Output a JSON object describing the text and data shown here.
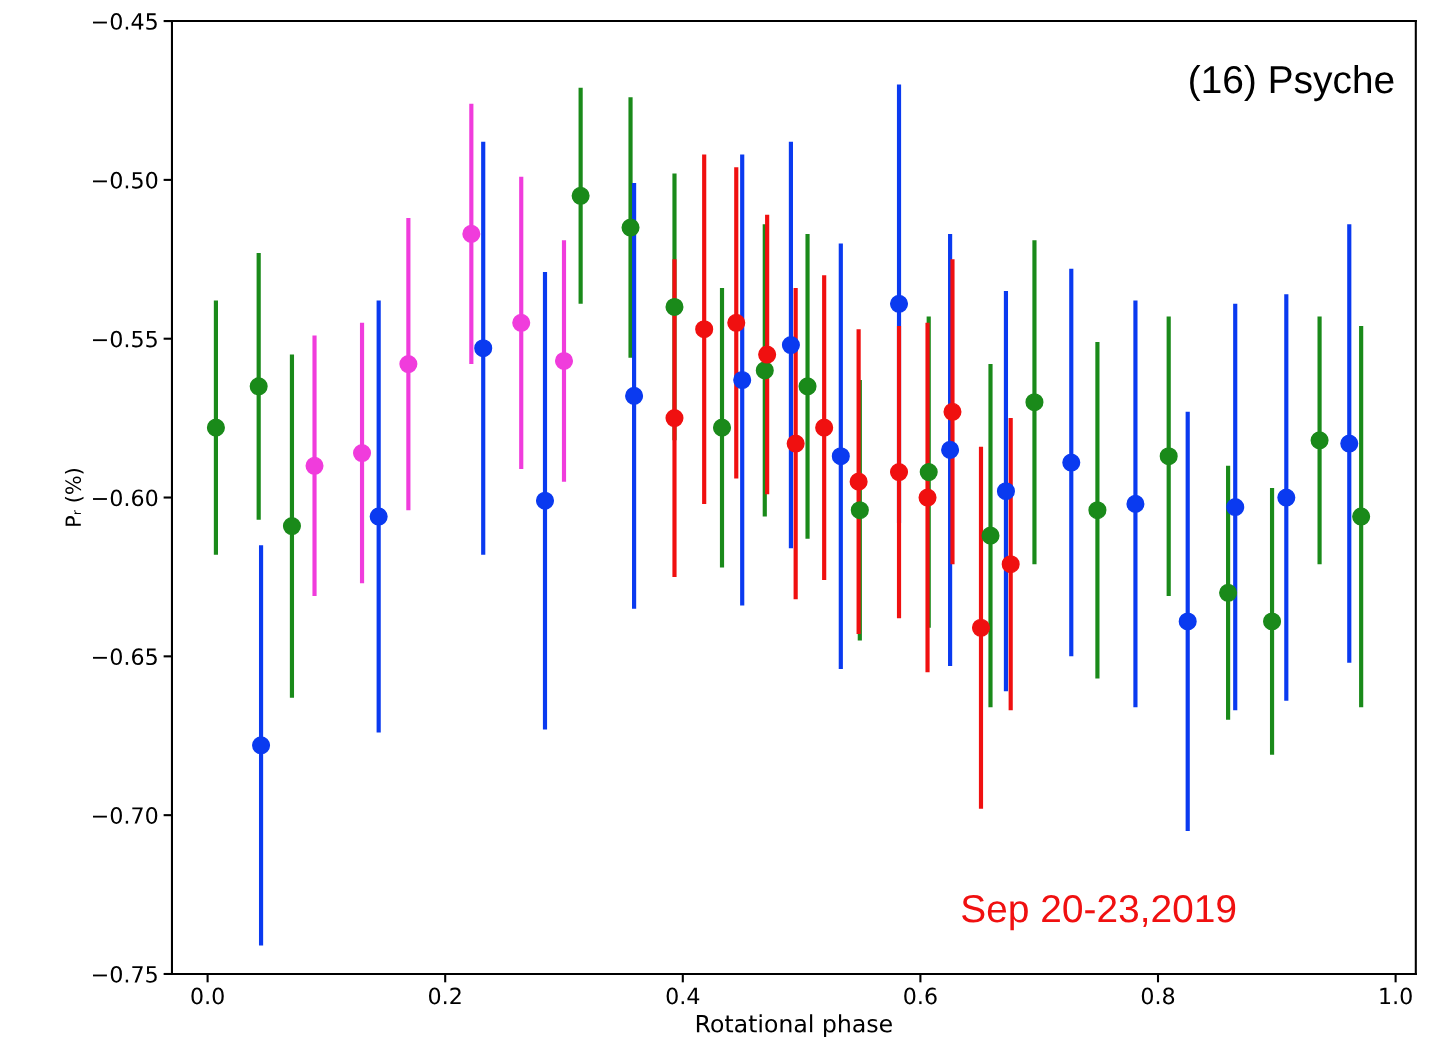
{
  "chart_data": {
    "type": "scatter",
    "xlabel": "Rotational phase",
    "ylabel": "Pᵣ (%)",
    "annotations": [
      "(16) Psyche",
      "Sep 20-23,2019"
    ],
    "xlim": [
      -0.03,
      1.017
    ],
    "ylim": [
      -0.75,
      -0.45
    ],
    "xticks": [
      {
        "value": 0,
        "label": "0.0"
      },
      0.2,
      0.4,
      0.6,
      0.8,
      {
        "value": 1,
        "label": "1.0"
      }
    ],
    "yticks": [
      {
        "value": -0.75,
        "label": "−0.75"
      },
      {
        "value": -0.7,
        "label": "−0.70"
      },
      {
        "value": -0.65,
        "label": "−0.65"
      },
      {
        "value": -0.6,
        "label": "−0.60"
      },
      {
        "value": -0.55,
        "label": "−0.55"
      },
      {
        "value": -0.5,
        "label": "−0.50"
      },
      {
        "value": -0.45,
        "label": "−0.45"
      }
    ],
    "grid": false,
    "marker": "circle",
    "series": [
      {
        "color": "#1a8a1a",
        "x": [
          0.007,
          0.043,
          0.071,
          0.314,
          0.356,
          0.393,
          0.433,
          0.469,
          0.505,
          0.549,
          0.607,
          0.659,
          0.696,
          0.749,
          0.809,
          0.859,
          0.896,
          0.936,
          0.971
        ],
        "values": [
          -0.578,
          -0.565,
          -0.609,
          -0.505,
          -0.515,
          -0.54,
          -0.578,
          -0.56,
          -0.565,
          -0.604,
          -0.592,
          -0.612,
          -0.57,
          -0.604,
          -0.587,
          -0.63,
          -0.639,
          -0.582,
          -0.606
        ],
        "errors": [
          0.04,
          0.042,
          0.054,
          0.034,
          0.041,
          0.042,
          0.044,
          0.046,
          0.048,
          0.041,
          0.049,
          0.054,
          0.051,
          0.053,
          0.044,
          0.04,
          0.042,
          0.039,
          0.06
        ]
      },
      {
        "color": "#0a3af0",
        "x": [
          0.045,
          0.144,
          0.232,
          0.284,
          0.359,
          0.45,
          0.491,
          0.533,
          0.582,
          0.625,
          0.672,
          0.727,
          0.781,
          0.825,
          0.865,
          0.908,
          0.961
        ],
        "values": [
          -0.678,
          -0.606,
          -0.553,
          -0.601,
          -0.568,
          -0.563,
          -0.552,
          -0.587,
          -0.539,
          -0.585,
          -0.598,
          -0.589,
          -0.602,
          -0.639,
          -0.603,
          -0.6,
          -0.583
        ],
        "errors": [
          0.063,
          0.068,
          0.065,
          0.072,
          0.067,
          0.071,
          0.064,
          0.067,
          0.069,
          0.068,
          0.063,
          0.061,
          0.064,
          0.066,
          0.064,
          0.064,
          0.069
        ]
      },
      {
        "color": "#f03cdc",
        "x": [
          0.09,
          0.13,
          0.169,
          0.222,
          0.264,
          0.3
        ],
        "values": [
          -0.59,
          -0.586,
          -0.558,
          -0.517,
          -0.545,
          -0.557
        ],
        "errors": [
          0.041,
          0.041,
          0.046,
          0.041,
          0.046,
          0.038
        ]
      },
      {
        "color": "#f01010",
        "x": [
          0.393,
          0.418,
          0.445,
          0.471,
          0.495,
          0.519,
          0.548,
          0.582,
          0.606,
          0.627,
          0.651,
          0.676
        ],
        "values": [
          -0.575,
          -0.547,
          -0.545,
          -0.555,
          -0.583,
          -0.578,
          -0.595,
          -0.592,
          -0.6,
          -0.573,
          -0.641,
          -0.621
        ],
        "errors": [
          0.05,
          0.055,
          0.049,
          0.044,
          0.049,
          0.048,
          0.048,
          0.046,
          0.055,
          0.048,
          0.057,
          0.046
        ]
      }
    ]
  }
}
